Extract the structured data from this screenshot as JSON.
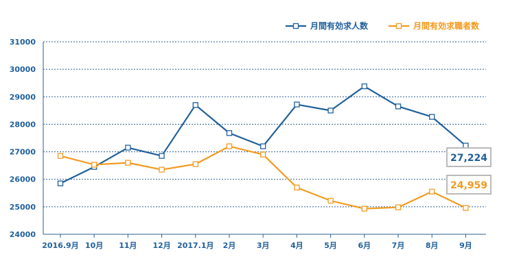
{
  "chart_data": {
    "type": "line",
    "categories": [
      "2016.9月",
      "10月",
      "11月",
      "12月",
      "2017.1月",
      "2月",
      "3月",
      "4月",
      "5月",
      "6月",
      "7月",
      "8月",
      "9月"
    ],
    "ylim": [
      24000,
      31000
    ],
    "yticks": [
      24000,
      25000,
      26000,
      27000,
      28000,
      29000,
      30000,
      31000
    ],
    "grid": true,
    "legend_position": "top-right",
    "series": [
      {
        "name": "月間有効求人数",
        "color": "#1f5f9a",
        "values": [
          25850,
          26450,
          27150,
          26850,
          28700,
          27680,
          27200,
          28720,
          28500,
          29380,
          28650,
          28270,
          27224
        ],
        "callout": "27,224"
      },
      {
        "name": "月間有効求職者数",
        "color": "#f39a1e",
        "values": [
          26850,
          26530,
          26600,
          26350,
          26550,
          27200,
          26900,
          25700,
          25220,
          24930,
          24980,
          25550,
          24959
        ],
        "callout": "24,959"
      }
    ]
  }
}
